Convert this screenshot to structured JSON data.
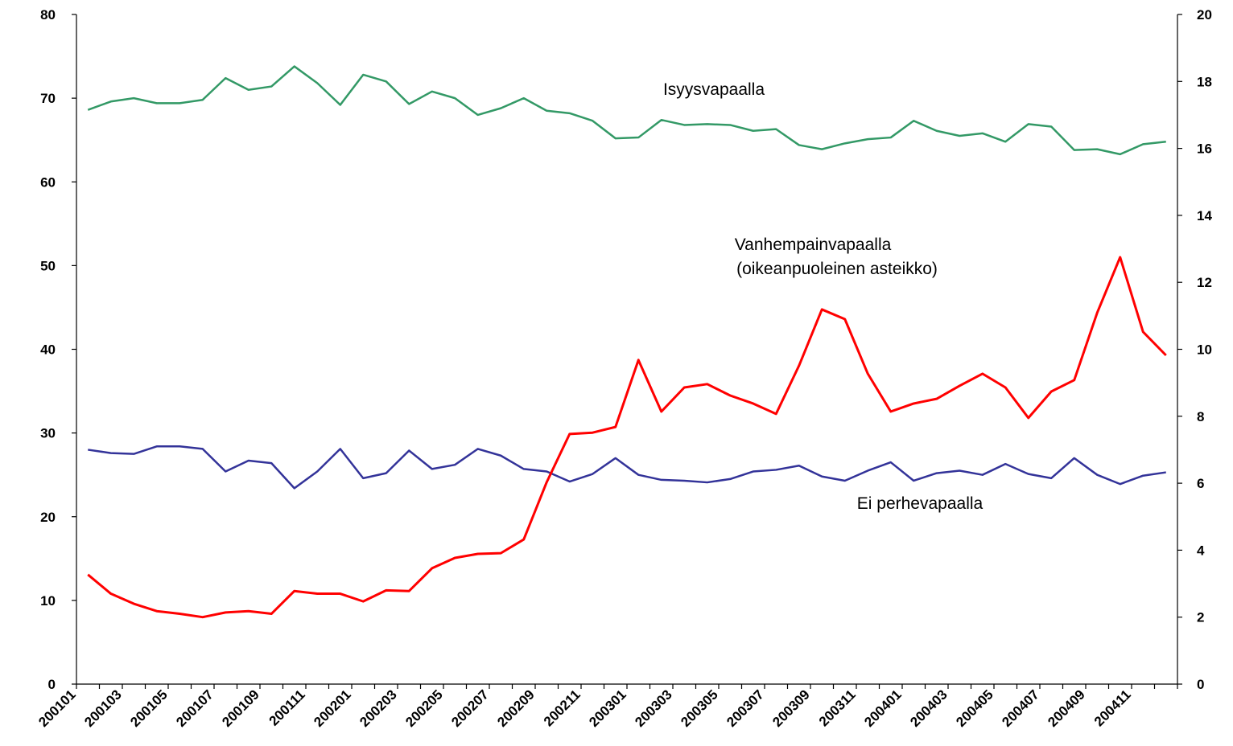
{
  "chart_data": {
    "type": "line",
    "annotations": [
      "Isyysvapaalla",
      "Vanhempainvapaalla",
      "(oikeanpuoleinen asteikko)",
      "Ei perhevapaalla"
    ],
    "categories": [
      "200101",
      null,
      "200103",
      null,
      "200105",
      null,
      "200107",
      null,
      "200109",
      null,
      "200111",
      null,
      "200201",
      null,
      "200203",
      null,
      "200205",
      null,
      "200207",
      null,
      "200209",
      null,
      "200211",
      null,
      "200301",
      null,
      "200303",
      null,
      "200305",
      null,
      "200307",
      null,
      "200309",
      null,
      "200311",
      null,
      "200401",
      null,
      "200403",
      null,
      "200405",
      null,
      "200407",
      null,
      "200409",
      null,
      "200411",
      null
    ],
    "ylim": [
      0,
      80
    ],
    "yticks": [
      0,
      10,
      20,
      30,
      40,
      50,
      60,
      70,
      80
    ],
    "y2lim": [
      0,
      20
    ],
    "y2ticks": [
      0,
      2,
      4,
      6,
      8,
      10,
      12,
      14,
      16,
      18,
      20
    ],
    "series": [
      {
        "name": "Isyysvapaalla",
        "color": "#339966",
        "values": [
          68.6,
          69.6,
          70.0,
          69.4,
          69.4,
          69.8,
          72.4,
          71.0,
          71.4,
          73.8,
          71.8,
          69.2,
          72.8,
          72.0,
          69.3,
          70.8,
          70.0,
          68.0,
          68.8,
          70.0,
          68.5,
          68.2,
          67.3,
          65.2,
          65.3,
          67.4,
          66.8,
          66.9,
          66.8,
          66.1,
          66.3,
          64.4,
          63.9,
          64.6,
          65.1,
          65.3,
          67.3,
          66.1,
          65.5,
          65.8,
          64.8,
          66.9,
          66.6,
          63.8,
          63.9,
          63.3,
          64.5,
          64.8
        ]
      },
      {
        "name": "Ei perhevapaalla",
        "color": "#333399",
        "values": [
          28.0,
          27.6,
          27.5,
          28.4,
          28.4,
          28.1,
          25.4,
          26.7,
          26.4,
          23.4,
          25.4,
          28.1,
          24.6,
          25.2,
          27.9,
          25.7,
          26.2,
          28.1,
          27.3,
          25.7,
          25.4,
          24.2,
          25.1,
          27.0,
          25.0,
          24.4,
          24.3,
          24.1,
          24.5,
          25.4,
          25.6,
          26.1,
          24.8,
          24.3,
          25.5,
          26.5,
          24.3,
          25.2,
          25.5,
          25.0,
          26.3,
          25.1,
          24.6,
          27.0,
          25.0,
          23.9,
          24.9,
          25.3
        ]
      },
      {
        "name": "Vanhempainvapaalla",
        "color": "#ff0000",
        "axis": "y2",
        "values": [
          3.27,
          2.7,
          2.4,
          2.18,
          2.1,
          2.0,
          2.14,
          2.18,
          2.1,
          2.78,
          2.7,
          2.7,
          2.47,
          2.8,
          2.78,
          3.46,
          3.77,
          3.89,
          3.91,
          4.32,
          6.03,
          7.47,
          7.51,
          7.68,
          9.68,
          8.14,
          8.86,
          8.96,
          8.62,
          8.38,
          8.07,
          9.51,
          11.19,
          10.9,
          9.27,
          8.14,
          8.38,
          8.52,
          8.91,
          9.27,
          8.86,
          7.95,
          8.74,
          9.08,
          11.09,
          12.75,
          10.52,
          9.82
        ]
      }
    ]
  }
}
